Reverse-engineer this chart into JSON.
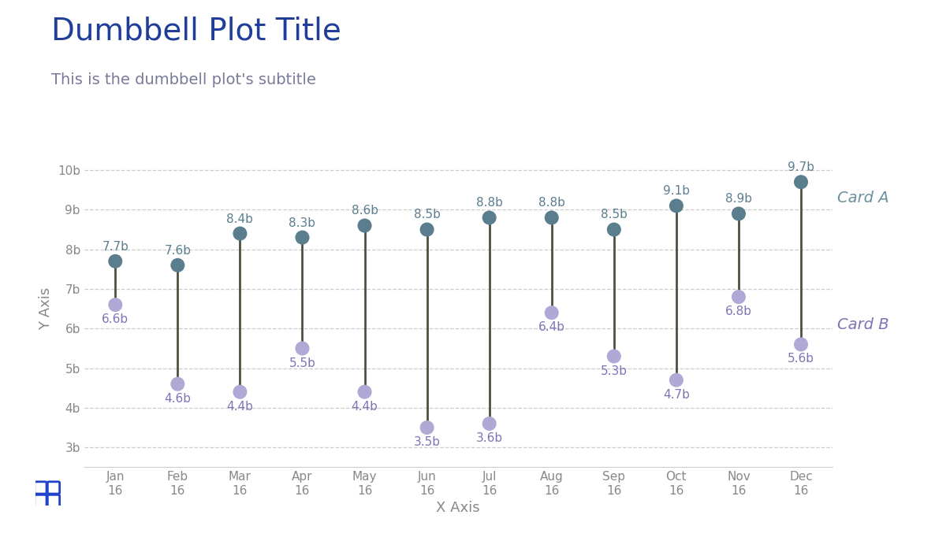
{
  "title": "Dumbbell Plot Title",
  "subtitle": "This is the dumbbell plot's subtitle",
  "xlabel": "X Axis",
  "ylabel": "Y Axis",
  "title_color": "#1F3D99",
  "subtitle_color": "#7A7A9A",
  "categories": [
    "Jan\n16",
    "Feb\n16",
    "Mar\n16",
    "Apr\n16",
    "May\n16",
    "Jun\n16",
    "Jul\n16",
    "Aug\n16",
    "Sep\n16",
    "Oct\n16",
    "Nov\n16",
    "Dec\n16"
  ],
  "card_a_values": [
    7.7,
    7.6,
    8.4,
    8.3,
    8.6,
    8.5,
    8.8,
    8.8,
    8.5,
    9.1,
    8.9,
    9.7
  ],
  "card_b_values": [
    6.6,
    4.6,
    4.4,
    5.5,
    4.4,
    3.5,
    3.6,
    6.4,
    5.3,
    4.7,
    6.8,
    5.6
  ],
  "card_a_labels": [
    "7.7b",
    "7.6b",
    "8.4b",
    "8.3b",
    "8.6b",
    "8.5b",
    "8.8b",
    "8.8b",
    "8.5b",
    "9.1b",
    "8.9b",
    "9.7b"
  ],
  "card_b_labels": [
    "6.6b",
    "4.6b",
    "4.4b",
    "5.5b",
    "4.4b",
    "3.5b",
    "3.6b",
    "6.4b",
    "5.3b",
    "4.7b",
    "6.8b",
    "5.6b"
  ],
  "card_a_color": "#5B7E8F",
  "card_b_color": "#B0A8D5",
  "line_color": "#4A5240",
  "legend_a_label": "Card A",
  "legend_b_label": "Card B",
  "legend_a_color": "#6A8FA0",
  "legend_b_color": "#7B75B5",
  "ylim": [
    2.5,
    10.5
  ],
  "yticks": [
    3,
    4,
    5,
    6,
    7,
    8,
    9,
    10
  ],
  "ytick_labels": [
    "3b",
    "4b",
    "5b",
    "6b",
    "7b",
    "8b",
    "9b",
    "10b"
  ],
  "background_color": "#FFFFFF",
  "grid_color": "#AAAAAA",
  "tick_label_color": "#888888",
  "axis_label_color": "#888888",
  "label_fontsize_title": 28,
  "label_fontsize_subtitle": 14,
  "label_fontsize_axis": 13,
  "label_fontsize_tick": 11,
  "label_fontsize_value": 11,
  "label_fontsize_legend": 14,
  "marker_size": 13,
  "line_width": 2.0,
  "icon_color": "#2244CC"
}
